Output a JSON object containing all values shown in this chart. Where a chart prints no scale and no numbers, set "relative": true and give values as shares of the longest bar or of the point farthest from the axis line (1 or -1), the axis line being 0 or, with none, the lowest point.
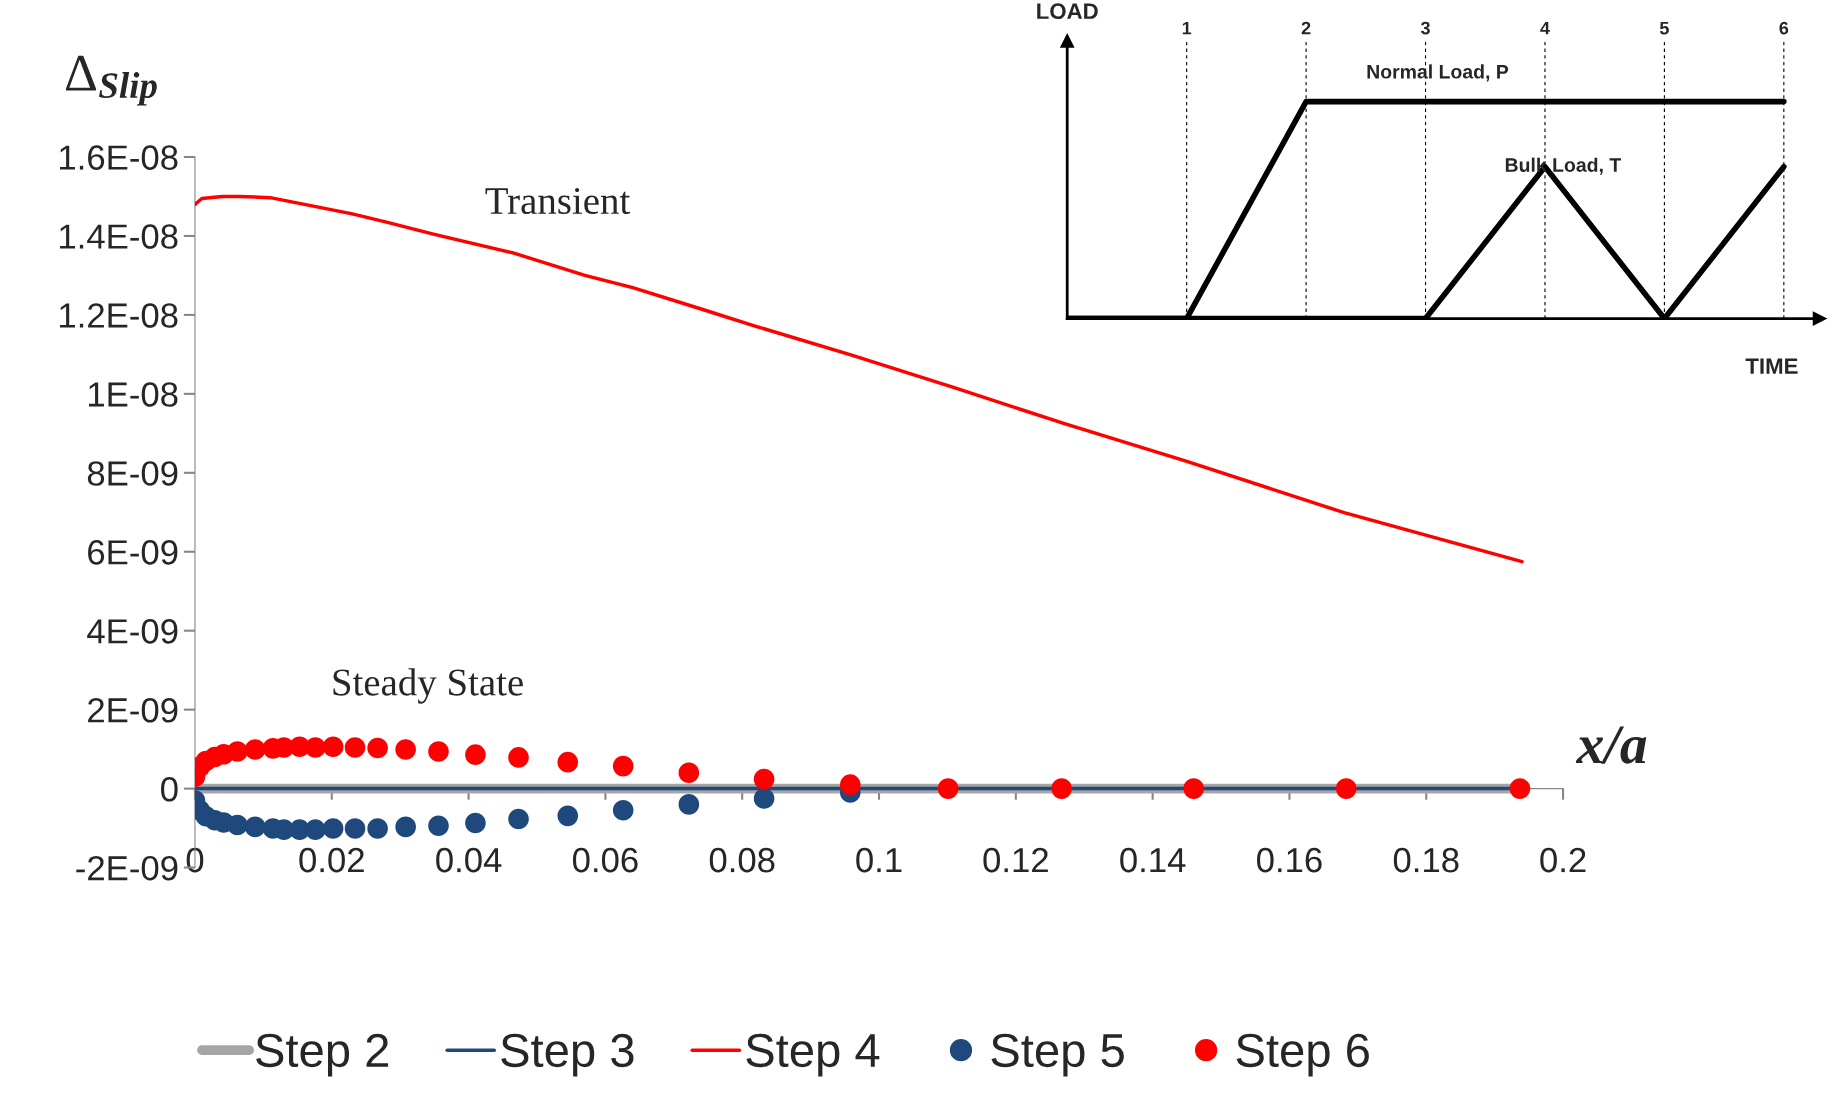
{
  "chart_data": [
    {
      "type": "line",
      "ylabel": "Δ$_{Slip}$",
      "xlabel": "x/a",
      "annotations": [
        "Transient",
        "Steady State"
      ],
      "xlim": [
        0,
        0.2
      ],
      "xticks": [
        0,
        0.02,
        0.04,
        0.06,
        0.08,
        0.1,
        0.12,
        0.14,
        0.16,
        0.18,
        0.2
      ],
      "ylim": [
        -2e-09,
        1.6e-08
      ],
      "yticks": [
        {
          "value": -2e-09,
          "label": "-2E-09"
        },
        0,
        {
          "value": 2e-09,
          "label": "2E-09"
        },
        {
          "value": 4e-09,
          "label": "4E-09"
        },
        {
          "value": 6e-09,
          "label": "6E-09"
        },
        {
          "value": 8e-09,
          "label": "8E-09"
        },
        {
          "value": 1e-08,
          "label": "1E-08"
        },
        {
          "value": 1.2e-08,
          "label": "1.2E-08"
        },
        {
          "value": 1.4e-08,
          "label": "1.4E-08"
        },
        {
          "value": 1.6e-08,
          "label": "1.6E-08"
        }
      ],
      "legend": "bottom",
      "series": [
        {
          "name": "Step 2",
          "color": "#a6a6a6",
          "x": [
            0,
            0.194
          ],
          "values": [
            0,
            0
          ]
        },
        {
          "name": "Step 3",
          "color": "#1f497d",
          "x": [
            0,
            0.194
          ],
          "values": [
            0,
            0
          ]
        },
        {
          "name": "Step 4",
          "color": "#ff0000",
          "x": [
            0,
            0.001,
            0.004,
            0.0065,
            0.011,
            0.016,
            0.023,
            0.028,
            0.035,
            0.0465,
            0.057,
            0.064,
            0.074,
            0.082,
            0.096,
            0.111,
            0.127,
            0.145,
            0.168,
            0.194
          ],
          "values": [
            1.48e-08,
            1.495e-08,
            1.5e-08,
            1.5e-08,
            1.497e-08,
            1.48e-08,
            1.456e-08,
            1.435e-08,
            1.404e-08,
            1.357e-08,
            1.3e-08,
            1.269e-08,
            1.215e-08,
            1.171e-08,
            1.098e-08,
            1.016e-08,
            9.25e-09,
            8.29e-09,
            6.99e-09,
            5.75e-09
          ]
        },
        {
          "name": "Step 5",
          "type": "scatter",
          "color": "#1f497d",
          "marker": "circle",
          "x": [
            0,
            0.0007,
            0.0016,
            0.0029,
            0.0042,
            0.0062,
            0.0088,
            0.0114,
            0.013,
            0.0153,
            0.0176,
            0.0202,
            0.0234,
            0.0267,
            0.0308,
            0.0356,
            0.041,
            0.0473,
            0.0545,
            0.0626,
            0.0722,
            0.0832,
            0.0958
          ],
          "values": [
            -3e-10,
            -5.5e-10,
            -7e-10,
            -8e-10,
            -8.6e-10,
            -9.2e-10,
            -9.7e-10,
            -1.01e-09,
            -1.04e-09,
            -1.04e-09,
            -1.04e-09,
            -1.01e-09,
            -1.01e-09,
            -1.01e-09,
            -9.7e-10,
            -9.4e-10,
            -8.7e-10,
            -7.7e-10,
            -6.9e-10,
            -5.5e-10,
            -4e-10,
            -2.5e-10,
            -1e-10
          ]
        },
        {
          "name": "Step 6",
          "type": "scatter",
          "color": "#ff0000",
          "marker": "circle",
          "x": [
            0,
            0.0007,
            0.0016,
            0.0029,
            0.0042,
            0.0062,
            0.0088,
            0.0114,
            0.013,
            0.0153,
            0.0176,
            0.0202,
            0.0234,
            0.0267,
            0.0308,
            0.0356,
            0.041,
            0.0473,
            0.0545,
            0.0626,
            0.0722,
            0.0832,
            0.0958,
            0.1101,
            0.1267,
            0.146,
            0.1683,
            0.1937
          ],
          "values": [
            3e-10,
            5.5e-10,
            7e-10,
            8e-10,
            8.7e-10,
            9.4e-10,
            9.9e-10,
            1.02e-09,
            1.04e-09,
            1.06e-09,
            1.04e-09,
            1.06e-09,
            1.04e-09,
            1.03e-09,
            9.9e-10,
            9.4e-10,
            8.6e-10,
            7.9e-10,
            6.7e-10,
            5.7e-10,
            4e-10,
            2.4e-10,
            1e-10,
            0,
            0,
            0,
            0,
            0
          ]
        }
      ]
    },
    {
      "type": "line",
      "relative": true,
      "xlabel": "TIME",
      "ylabel": "LOAD",
      "grid": "x",
      "categories": [
        null,
        "1",
        "2",
        "3",
        "4",
        "5",
        "6"
      ],
      "series": [
        {
          "name": "Normal Load, P",
          "color": "#000000",
          "values": [
            0,
            0,
            1,
            1,
            1,
            1,
            1
          ]
        },
        {
          "name": "Bulk Load, T",
          "color": "#000000",
          "values": [
            0,
            0,
            0,
            0,
            0.7,
            0,
            0.7
          ]
        }
      ]
    }
  ]
}
